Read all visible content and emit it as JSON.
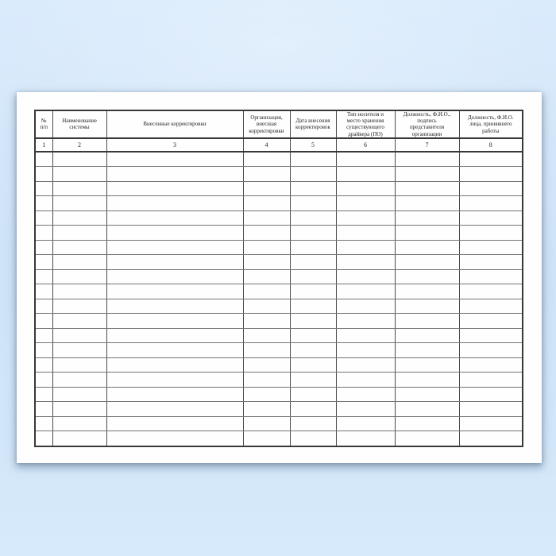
{
  "document": {
    "kind": "journal-table-form",
    "language": "ru"
  },
  "colors": {
    "background_top": "#d8eafc",
    "background_middle": "#cfe3f7",
    "background_bottom": "#d7eafb",
    "paper": "#fefefe",
    "border_dark": "#383838",
    "border_light": "#757575",
    "text": "#1f1f1f"
  },
  "table": {
    "column_count": 8,
    "body_row_count": 20,
    "headers": [
      {
        "label": "№\nп/п",
        "number": "1"
      },
      {
        "label": "Наименование\nсистемы",
        "number": "2"
      },
      {
        "label": "Внесенные корректировки",
        "number": "3"
      },
      {
        "label": "Организация,\nвнесшая\nкорректировки",
        "number": "4"
      },
      {
        "label": "Дата внесения\nкорректировок",
        "number": "5"
      },
      {
        "label": "Тип носителя и\nместо хранения\nсуществующего\nдрайвера (ПО)",
        "number": "6"
      },
      {
        "label": "Должность, Ф.И.О.,\nподпись\nпредставителя\nорганизации",
        "number": "7"
      },
      {
        "label": "Должность, Ф.И.О.\nлица, принявшего\nработы",
        "number": "8"
      }
    ]
  }
}
